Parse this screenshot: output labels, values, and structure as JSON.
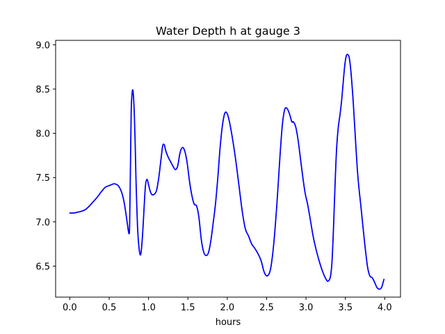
{
  "chart_data": {
    "type": "line",
    "title": "Water Depth h at gauge 3",
    "xlabel": "hours",
    "ylabel": "",
    "xlim": [
      -0.18,
      4.2
    ],
    "ylim": [
      6.15,
      9.05
    ],
    "xticks": [
      0.0,
      0.5,
      1.0,
      1.5,
      2.0,
      2.5,
      3.0,
      3.5,
      4.0
    ],
    "xtick_labels": [
      "0.0",
      "0.5",
      "1.0",
      "1.5",
      "2.0",
      "2.5",
      "3.0",
      "3.5",
      "4.0"
    ],
    "yticks": [
      6.5,
      7.0,
      7.5,
      8.0,
      8.5,
      9.0
    ],
    "ytick_labels": [
      "6.5",
      "7.0",
      "7.5",
      "8.0",
      "8.5",
      "9.0"
    ],
    "grid": false,
    "legend": "none",
    "series": [
      {
        "color": "#0000ff",
        "x": [
          0.0,
          0.05,
          0.1,
          0.15,
          0.2,
          0.25,
          0.3,
          0.35,
          0.4,
          0.45,
          0.5,
          0.53,
          0.56,
          0.6,
          0.63,
          0.66,
          0.69,
          0.72,
          0.75,
          0.76,
          0.77,
          0.78,
          0.79,
          0.8,
          0.81,
          0.82,
          0.83,
          0.84,
          0.86,
          0.88,
          0.9,
          0.92,
          0.94,
          0.96,
          0.98,
          1.0,
          1.02,
          1.04,
          1.07,
          1.1,
          1.13,
          1.16,
          1.18,
          1.2,
          1.22,
          1.25,
          1.28,
          1.31,
          1.34,
          1.37,
          1.4,
          1.43,
          1.46,
          1.49,
          1.52,
          1.55,
          1.58,
          1.61,
          1.64,
          1.67,
          1.7,
          1.73,
          1.76,
          1.79,
          1.82,
          1.85,
          1.88,
          1.91,
          1.94,
          1.97,
          2.0,
          2.03,
          2.07,
          2.11,
          2.15,
          2.19,
          2.23,
          2.27,
          2.31,
          2.35,
          2.39,
          2.43,
          2.47,
          2.51,
          2.55,
          2.59,
          2.63,
          2.67,
          2.7,
          2.73,
          2.76,
          2.79,
          2.82,
          2.84,
          2.87,
          2.9,
          2.93,
          2.96,
          2.99,
          3.02,
          3.05,
          3.09,
          3.13,
          3.17,
          3.21,
          3.25,
          3.28,
          3.31,
          3.33,
          3.35,
          3.37,
          3.39,
          3.41,
          3.43,
          3.45,
          3.47,
          3.49,
          3.51,
          3.53,
          3.55,
          3.57,
          3.6,
          3.63,
          3.66,
          3.7,
          3.74,
          3.78,
          3.81,
          3.84,
          3.87,
          3.9,
          3.93,
          3.96,
          3.98,
          3.99
        ],
        "y": [
          7.1,
          7.1,
          7.11,
          7.12,
          7.14,
          7.18,
          7.23,
          7.28,
          7.34,
          7.39,
          7.41,
          7.42,
          7.43,
          7.42,
          7.39,
          7.33,
          7.22,
          7.05,
          6.87,
          6.98,
          7.6,
          8.25,
          8.44,
          8.49,
          8.4,
          8.2,
          7.9,
          7.5,
          6.95,
          6.7,
          6.63,
          6.8,
          7.1,
          7.4,
          7.48,
          7.42,
          7.35,
          7.31,
          7.31,
          7.35,
          7.5,
          7.72,
          7.86,
          7.87,
          7.8,
          7.73,
          7.68,
          7.63,
          7.59,
          7.63,
          7.78,
          7.84,
          7.8,
          7.67,
          7.46,
          7.3,
          7.2,
          7.18,
          7.05,
          6.8,
          6.66,
          6.62,
          6.65,
          6.78,
          6.98,
          7.2,
          7.5,
          7.85,
          8.1,
          8.23,
          8.22,
          8.12,
          7.92,
          7.68,
          7.4,
          7.12,
          6.92,
          6.84,
          6.75,
          6.7,
          6.64,
          6.56,
          6.43,
          6.39,
          6.47,
          6.75,
          7.2,
          7.75,
          8.1,
          8.27,
          8.28,
          8.22,
          8.13,
          8.13,
          8.07,
          7.92,
          7.71,
          7.5,
          7.32,
          7.2,
          7.05,
          6.84,
          6.68,
          6.55,
          6.44,
          6.36,
          6.33,
          6.38,
          6.55,
          6.95,
          7.45,
          7.85,
          8.07,
          8.2,
          8.35,
          8.55,
          8.75,
          8.87,
          8.89,
          8.85,
          8.7,
          8.35,
          7.9,
          7.5,
          7.15,
          6.8,
          6.5,
          6.39,
          6.37,
          6.32,
          6.26,
          6.24,
          6.26,
          6.32,
          6.35
        ]
      }
    ]
  }
}
